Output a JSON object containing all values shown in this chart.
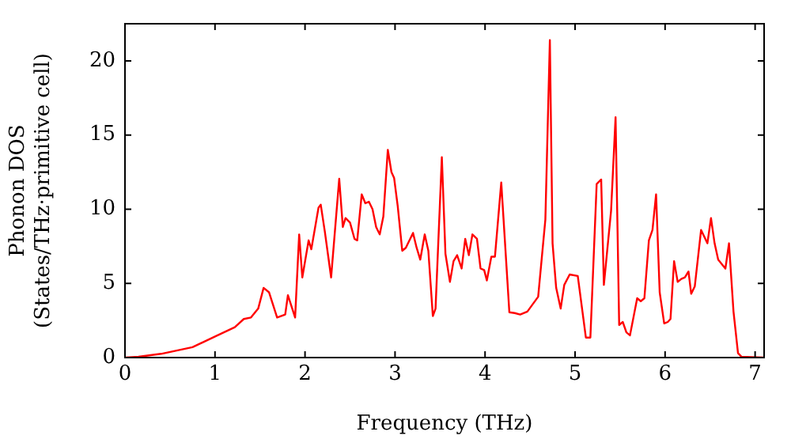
{
  "chart_data": {
    "type": "line",
    "xlabel": "Frequency (THz)",
    "ylabel": "Phonon DOS\n(States/THz·primitive cell)",
    "x": [
      0,
      0.15,
      0.4,
      0.75,
      1.01,
      1.22,
      1.32,
      1.4,
      1.48,
      1.54,
      1.6,
      1.69,
      1.78,
      1.81,
      1.89,
      1.935,
      1.97,
      2.04,
      2.07,
      2.15,
      2.175,
      2.22,
      2.29,
      2.38,
      2.42,
      2.45,
      2.5,
      2.55,
      2.58,
      2.63,
      2.67,
      2.71,
      2.75,
      2.79,
      2.83,
      2.87,
      2.92,
      2.96,
      2.99,
      3.03,
      3.08,
      3.12,
      3.2,
      3.24,
      3.28,
      3.33,
      3.37,
      3.42,
      3.45,
      3.52,
      3.56,
      3.61,
      3.65,
      3.69,
      3.74,
      3.78,
      3.82,
      3.86,
      3.91,
      3.95,
      3.99,
      4.02,
      4.07,
      4.11,
      4.18,
      4.27,
      4.33,
      4.39,
      4.47,
      4.59,
      4.67,
      4.72,
      4.75,
      4.79,
      4.84,
      4.88,
      4.94,
      5.03,
      5.12,
      5.17,
      5.24,
      5.29,
      5.32,
      5.4,
      5.45,
      5.49,
      5.53,
      5.57,
      5.61,
      5.69,
      5.73,
      5.77,
      5.82,
      5.86,
      5.9,
      5.94,
      5.99,
      6.03,
      6.06,
      6.1,
      6.14,
      6.18,
      6.22,
      6.26,
      6.29,
      6.33,
      6.4,
      6.47,
      6.51,
      6.55,
      6.59,
      6.67,
      6.71,
      6.76,
      6.81,
      6.85,
      7.1
    ],
    "series": [
      {
        "color": "#ff0000",
        "values": [
          0,
          0.05,
          0.25,
          0.7,
          1.45,
          2.05,
          2.6,
          2.7,
          3.3,
          4.7,
          4.4,
          2.7,
          2.9,
          4.2,
          2.7,
          8.3,
          5.4,
          7.9,
          7.3,
          10.1,
          10.3,
          8.5,
          5.4,
          12.05,
          8.8,
          9.4,
          9.1,
          8.0,
          7.9,
          11.0,
          10.4,
          10.5,
          10.0,
          8.8,
          8.3,
          9.5,
          14.0,
          12.5,
          12.1,
          10.2,
          7.2,
          7.4,
          8.4,
          7.4,
          6.6,
          8.3,
          7.2,
          2.8,
          3.3,
          13.5,
          7.0,
          5.1,
          6.5,
          6.9,
          6.0,
          8.0,
          6.9,
          8.3,
          8.0,
          6.0,
          5.9,
          5.2,
          6.8,
          6.8,
          11.8,
          3.05,
          3.0,
          2.9,
          3.1,
          4.1,
          9.3,
          21.4,
          7.7,
          4.7,
          3.3,
          4.9,
          5.6,
          5.5,
          1.35,
          1.35,
          11.7,
          12.0,
          4.9,
          9.9,
          16.2,
          2.2,
          2.4,
          1.7,
          1.5,
          4.0,
          3.8,
          4.0,
          7.9,
          8.6,
          11.0,
          4.4,
          2.3,
          2.4,
          2.6,
          6.5,
          5.1,
          5.3,
          5.4,
          5.8,
          4.3,
          4.8,
          8.6,
          7.7,
          9.4,
          7.7,
          6.6,
          6.0,
          7.7,
          3.1,
          0.3,
          0.05,
          0
        ]
      }
    ],
    "xlim": [
      0,
      7.1
    ],
    "xticks": [
      0,
      1,
      2,
      3,
      4,
      5,
      6,
      7
    ],
    "ylim": [
      0,
      22.5
    ],
    "yticks": [
      0,
      5,
      10,
      15,
      20
    ],
    "grid": false,
    "legend": false,
    "marker": "none",
    "line_style": "solid"
  }
}
